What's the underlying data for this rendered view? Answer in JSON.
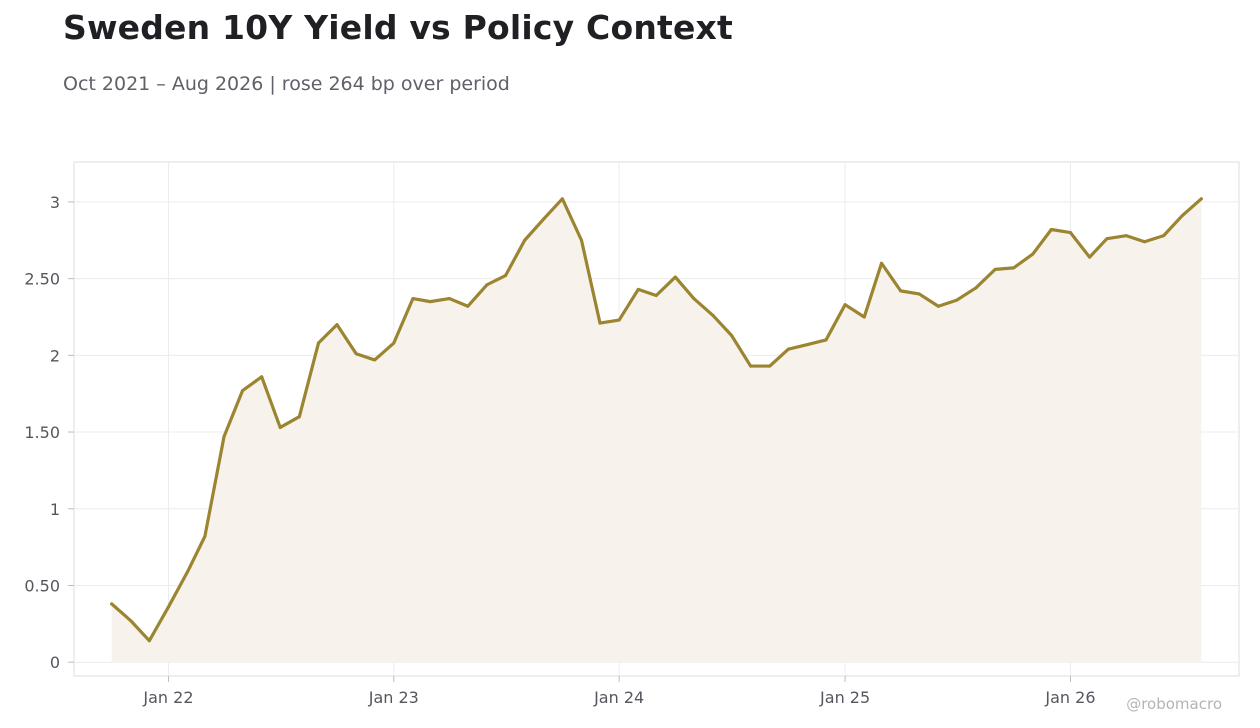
{
  "header": {
    "title": "Sweden 10Y Yield vs Policy Context",
    "subtitle": "Oct 2021 – Aug 2026 | rose 264 bp over period"
  },
  "watermark": "@robomacro",
  "colors": {
    "line": "#9b8530",
    "area": "#f7f3ec",
    "grid": "#ececec",
    "frame": "#dcdcdc"
  },
  "chart_data": {
    "type": "area",
    "title": "Sweden 10Y Yield vs Policy Context",
    "subtitle": "Oct 2021 – Aug 2026 | rose 264 bp over period",
    "xlabel": "",
    "ylabel": "",
    "x_ticks": [
      {
        "date": "2022-01-01",
        "label": "Jan 22"
      },
      {
        "date": "2023-01-01",
        "label": "Jan 23"
      },
      {
        "date": "2024-01-01",
        "label": "Jan 24"
      },
      {
        "date": "2025-01-01",
        "label": "Jan 25"
      },
      {
        "date": "2026-01-01",
        "label": "Jan 26"
      }
    ],
    "y_ticks": [
      {
        "value": 0,
        "label": "0"
      },
      {
        "value": 0.5,
        "label": "0.50"
      },
      {
        "value": 1,
        "label": "1"
      },
      {
        "value": 1.5,
        "label": "1.50"
      },
      {
        "value": 2,
        "label": "2"
      },
      {
        "value": 2.5,
        "label": "2.50"
      },
      {
        "value": 3,
        "label": "3"
      }
    ],
    "xlim": [
      "2021-08-01",
      "2026-10-01"
    ],
    "ylim": [
      -0.09,
      3.26
    ],
    "grid": true,
    "series": [
      {
        "points": [
          [
            "2021-10-01",
            0.38
          ],
          [
            "2021-11-01",
            0.27
          ],
          [
            "2021-12-01",
            0.14
          ],
          [
            "2022-01-01",
            0.36
          ],
          [
            "2022-02-01",
            0.59
          ],
          [
            "2022-03-01",
            0.82
          ],
          [
            "2022-04-01",
            1.47
          ],
          [
            "2022-05-01",
            1.77
          ],
          [
            "2022-06-01",
            1.86
          ],
          [
            "2022-07-01",
            1.53
          ],
          [
            "2022-08-01",
            1.6
          ],
          [
            "2022-09-01",
            2.08
          ],
          [
            "2022-10-01",
            2.2
          ],
          [
            "2022-11-01",
            2.01
          ],
          [
            "2022-12-01",
            1.97
          ],
          [
            "2023-01-01",
            2.08
          ],
          [
            "2023-02-01",
            2.37
          ],
          [
            "2023-03-01",
            2.35
          ],
          [
            "2023-04-01",
            2.37
          ],
          [
            "2023-05-01",
            2.32
          ],
          [
            "2023-06-01",
            2.46
          ],
          [
            "2023-07-01",
            2.52
          ],
          [
            "2023-08-01",
            2.75
          ],
          [
            "2023-09-01",
            2.89
          ],
          [
            "2023-10-01",
            3.02
          ],
          [
            "2023-11-01",
            2.75
          ],
          [
            "2023-12-01",
            2.21
          ],
          [
            "2024-01-01",
            2.23
          ],
          [
            "2024-02-01",
            2.43
          ],
          [
            "2024-03-01",
            2.39
          ],
          [
            "2024-04-01",
            2.51
          ],
          [
            "2024-05-01",
            2.37
          ],
          [
            "2024-06-01",
            2.26
          ],
          [
            "2024-07-01",
            2.13
          ],
          [
            "2024-08-01",
            1.93
          ],
          [
            "2024-09-01",
            1.93
          ],
          [
            "2024-10-01",
            2.04
          ],
          [
            "2024-11-01",
            2.07
          ],
          [
            "2024-12-01",
            2.1
          ],
          [
            "2025-01-01",
            2.33
          ],
          [
            "2025-02-01",
            2.25
          ],
          [
            "2025-03-01",
            2.6
          ],
          [
            "2025-04-01",
            2.42
          ],
          [
            "2025-05-01",
            2.4
          ],
          [
            "2025-06-01",
            2.32
          ],
          [
            "2025-07-01",
            2.36
          ],
          [
            "2025-08-01",
            2.44
          ],
          [
            "2025-09-01",
            2.56
          ],
          [
            "2025-10-01",
            2.57
          ],
          [
            "2025-11-01",
            2.66
          ],
          [
            "2025-12-01",
            2.82
          ],
          [
            "2026-01-01",
            2.8
          ],
          [
            "2026-02-01",
            2.64
          ],
          [
            "2026-03-01",
            2.76
          ],
          [
            "2026-04-01",
            2.78
          ],
          [
            "2026-05-01",
            2.74
          ],
          [
            "2026-06-01",
            2.78
          ],
          [
            "2026-07-01",
            2.91
          ],
          [
            "2026-08-01",
            3.02
          ]
        ]
      }
    ]
  }
}
